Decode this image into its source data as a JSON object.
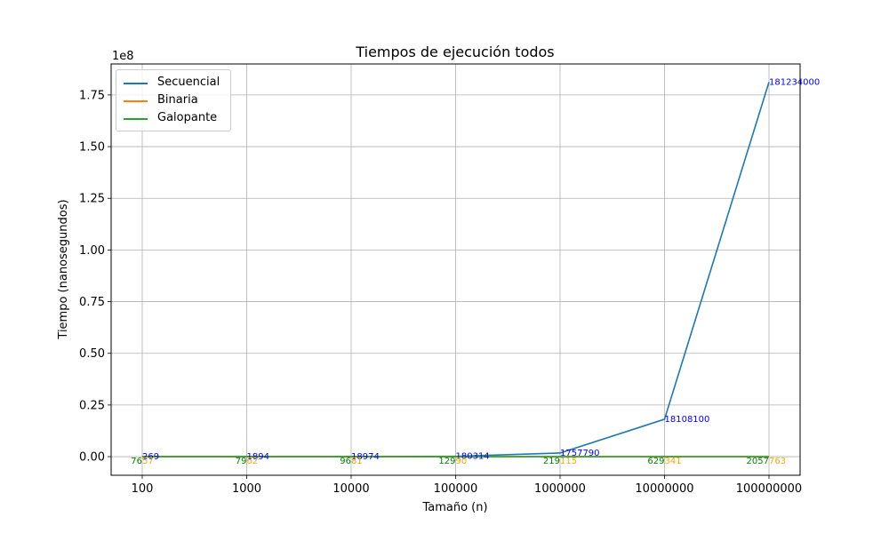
{
  "chart_data": {
    "type": "line",
    "title": "Tiempos de ejecución todos",
    "xlabel": "Tamaño (n)",
    "ylabel": "Tiempo (nanosegundos)",
    "y_offset_label": "1e8",
    "categories": [
      "100",
      "1000",
      "10000",
      "100000",
      "1000000",
      "10000000",
      "100000000"
    ],
    "ylim": [
      -9000000,
      190000000
    ],
    "yticks": [
      0,
      25000000,
      50000000,
      75000000,
      100000000,
      125000000,
      150000000,
      175000000
    ],
    "ytick_labels": [
      "0.00",
      "0.25",
      "0.50",
      "0.75",
      "1.00",
      "1.25",
      "1.50",
      "1.75"
    ],
    "grid": true,
    "legend_position": "upper-left",
    "series": [
      {
        "name": "Secuencial",
        "color": "#1f77b4",
        "label_color": "#0000ff",
        "values": [
          269,
          1894,
          18974,
          180314,
          1757790,
          18108100,
          181234000
        ],
        "labels": [
          "269",
          "1894",
          "18974",
          "180314",
          "1757790",
          "18108100",
          "181234000"
        ]
      },
      {
        "name": "Binaria",
        "color": "#ff7f0e",
        "label_color": "#ffa500",
        "values": [
          57,
          62,
          81,
          90,
          115,
          341,
          763
        ],
        "labels": [
          "57",
          "62",
          "81",
          "90",
          "115",
          "341",
          "763"
        ]
      },
      {
        "name": "Galopante",
        "color": "#2ca02c",
        "label_color": "#008000",
        "values": [
          76,
          79,
          96,
          129,
          219,
          629,
          2057
        ],
        "labels": [
          "76",
          "79",
          "96",
          "129",
          "219",
          "629",
          "2057"
        ]
      }
    ]
  }
}
